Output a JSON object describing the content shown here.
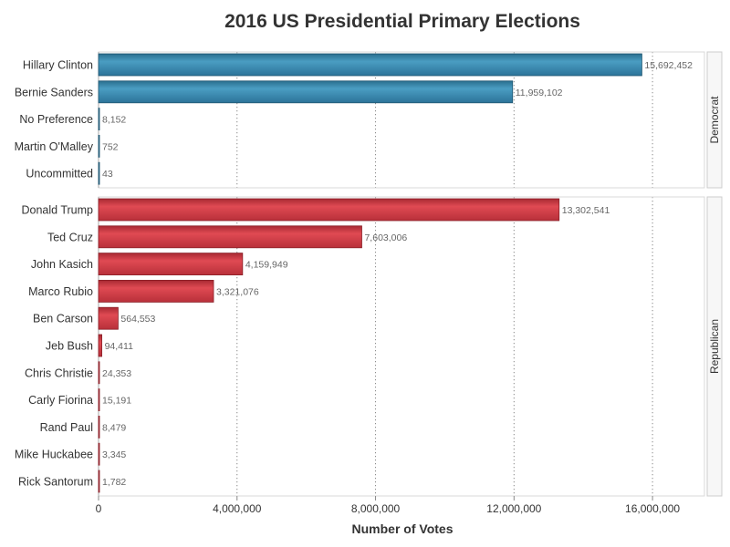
{
  "chart_data": {
    "type": "bar",
    "orientation": "horizontal",
    "title": "2016 US Presidential Primary Elections",
    "xlabel": "Number of Votes",
    "ylabel": "",
    "xlim": [
      0,
      17500000
    ],
    "xticks": [
      0,
      4000000,
      8000000,
      12000000,
      16000000
    ],
    "xtick_labels": [
      "0",
      "4,000,000",
      "8,000,000",
      "12,000,000",
      "16,000,000"
    ],
    "grid": "vertical-dotted",
    "colors": {
      "Democrat": "#3a89ad",
      "Republican": "#d03a44"
    },
    "panels": [
      {
        "label": "Democrat",
        "categories": [
          "Hillary Clinton",
          "Bernie Sanders",
          "No Preference",
          "Martin O'Malley",
          "Uncommitted"
        ],
        "values": [
          15692452,
          11959102,
          8152,
          752,
          43
        ],
        "value_labels": [
          "15,692,452",
          "11,959,102",
          "8,152",
          "752",
          "43"
        ]
      },
      {
        "label": "Republican",
        "categories": [
          "Donald Trump",
          "Ted Cruz",
          "John Kasich",
          "Marco Rubio",
          "Ben Carson",
          "Jeb Bush",
          "Chris Christie",
          "Carly Fiorina",
          "Rand Paul",
          "Mike Huckabee",
          "Rick Santorum"
        ],
        "values": [
          13302541,
          7603006,
          4159949,
          3321076,
          564553,
          94411,
          24353,
          15191,
          8479,
          3345,
          1782
        ],
        "value_labels": [
          "13,302,541",
          "7,603,006",
          "4,159,949",
          "3,321,076",
          "564,553",
          "94,411",
          "24,353",
          "15,191",
          "8,479",
          "3,345",
          "1,782"
        ]
      }
    ]
  }
}
